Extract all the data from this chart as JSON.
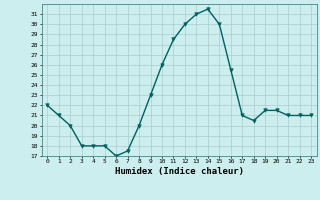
{
  "x": [
    0,
    1,
    2,
    3,
    4,
    5,
    6,
    7,
    8,
    9,
    10,
    11,
    12,
    13,
    14,
    15,
    16,
    17,
    18,
    19,
    20,
    21,
    22,
    23
  ],
  "y": [
    22,
    21,
    20,
    18,
    18,
    18,
    17,
    17.5,
    20,
    23,
    26,
    28.5,
    30,
    31,
    31.5,
    30,
    25.5,
    21,
    20.5,
    21.5,
    21.5,
    21,
    21,
    21
  ],
  "line_color": "#006060",
  "marker_color": "#006060",
  "bg_color": "#cceeee",
  "grid_color": "#aacccc",
  "xlabel": "Humidex (Indice chaleur)",
  "ylim": [
    17,
    32
  ],
  "xlim": [
    -0.5,
    23.5
  ],
  "yticks": [
    17,
    18,
    19,
    20,
    21,
    22,
    23,
    24,
    25,
    26,
    27,
    28,
    29,
    30,
    31
  ],
  "xticks": [
    0,
    1,
    2,
    3,
    4,
    5,
    6,
    7,
    8,
    9,
    10,
    11,
    12,
    13,
    14,
    15,
    16,
    17,
    18,
    19,
    20,
    21,
    22,
    23
  ]
}
